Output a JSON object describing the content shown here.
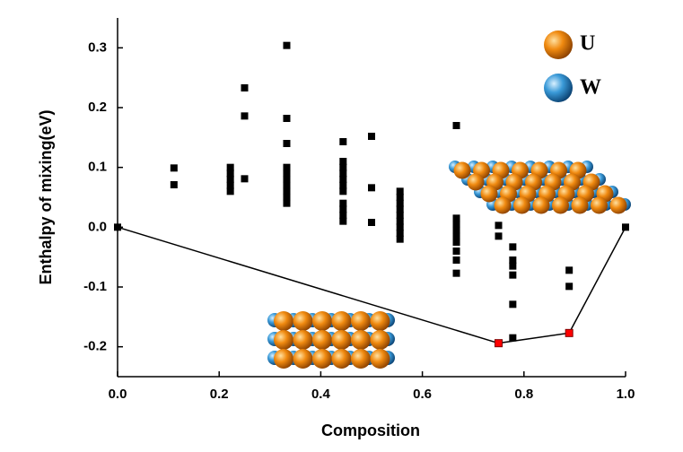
{
  "chart_data": {
    "type": "scatter",
    "xlabel": "Composition",
    "ylabel": "Enthalpy of mixing(eV)",
    "xlim": [
      0,
      1
    ],
    "ylim": [
      -0.25,
      0.35
    ],
    "xticks": [
      {
        "value": 0,
        "label": "0.0"
      },
      0.2,
      0.4,
      0.6,
      0.8,
      {
        "value": 1,
        "label": "1.0"
      }
    ],
    "yticks": [
      -0.2,
      -0.1,
      {
        "value": 0,
        "label": "0.0"
      },
      0.1,
      0.2,
      0.3
    ],
    "legend": [
      "U",
      "W"
    ],
    "series": [
      {
        "color": "#000000",
        "x": [
          0,
          0.111,
          0.111,
          0.222,
          0.222,
          0.222,
          0.222,
          0.222,
          0.25,
          0.25,
          0.25,
          0.333,
          0.333,
          0.333,
          0.333,
          0.333,
          0.333,
          0.333,
          0.333,
          0.333,
          0.333,
          0.444,
          0.444,
          0.444,
          0.444,
          0.444,
          0.444,
          0.444,
          0.444,
          0.444,
          0.444,
          0.444,
          0.5,
          0.5,
          0.5,
          0.556,
          0.556,
          0.556,
          0.556,
          0.556,
          0.556,
          0.556,
          0.556,
          0.556,
          0.667,
          0.667,
          0.667,
          0.667,
          0.667,
          0.667,
          0.667,
          0.667,
          0.667,
          0.75,
          0.75,
          0.778,
          0.778,
          0.778,
          0.778,
          0.778,
          0.778,
          0.889,
          0.889,
          1
        ],
        "values": [
          0,
          0.099,
          0.071,
          0.1,
          0.09,
          0.08,
          0.07,
          0.06,
          0.233,
          0.186,
          0.081,
          0.304,
          0.182,
          0.14,
          0.1,
          0.09,
          0.08,
          0.07,
          0.06,
          0.05,
          0.04,
          0.143,
          0.11,
          0.1,
          0.09,
          0.08,
          0.07,
          0.06,
          0.04,
          0.03,
          0.02,
          0.01,
          0.152,
          0.066,
          0.008,
          0.06,
          0.05,
          0.04,
          0.03,
          0.02,
          0.01,
          0,
          -0.01,
          -0.02,
          0.17,
          0.015,
          0.005,
          -0.005,
          -0.015,
          -0.025,
          -0.04,
          -0.055,
          -0.077,
          0.003,
          -0.015,
          -0.033,
          -0.055,
          -0.065,
          -0.08,
          -0.129,
          -0.185,
          -0.072,
          -0.099,
          0
        ]
      },
      {
        "type": "line",
        "color": "#000000",
        "x": [
          0,
          0.75,
          0.889,
          1
        ],
        "values": [
          0,
          -0.194,
          -0.177,
          0
        ]
      },
      {
        "color": "#ff0000",
        "x": [
          0.75,
          0.889
        ],
        "values": [
          -0.194,
          -0.177
        ]
      }
    ]
  }
}
